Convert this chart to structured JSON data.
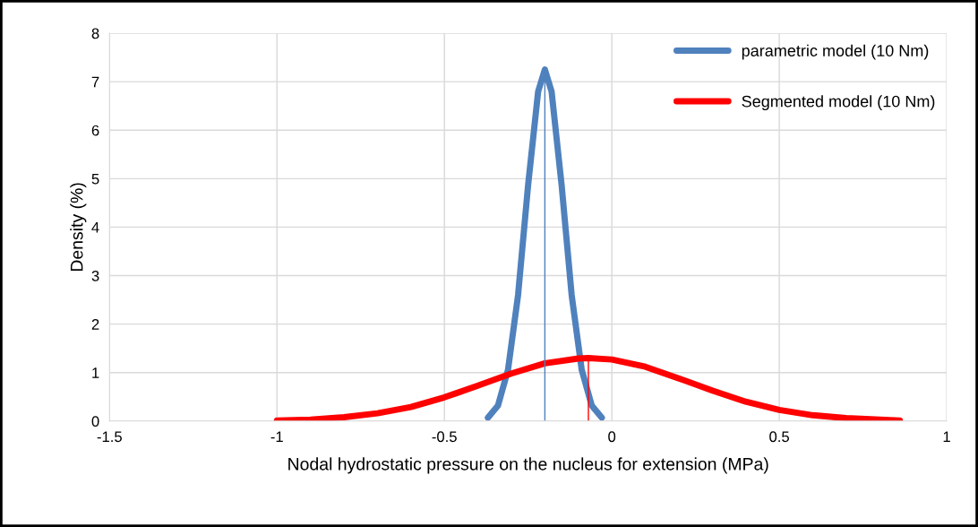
{
  "chart_data": {
    "type": "line",
    "xlabel": "Nodal hydrostatic pressure on the nucleus for extension (MPa)",
    "ylabel": "Density (%)",
    "xlim": [
      -1.5,
      1
    ],
    "xticks": [
      -1.5,
      -1,
      -0.5,
      0,
      0.5,
      1
    ],
    "ylim": [
      0,
      8
    ],
    "yticks": [
      0,
      1,
      2,
      3,
      4,
      5,
      6,
      7,
      8
    ],
    "grid": true,
    "legend": "top right",
    "series": [
      {
        "name": "parametric model (10 Nm)",
        "color": "#4f81bd",
        "x": [
          -0.37,
          -0.34,
          -0.31,
          -0.28,
          -0.25,
          -0.22,
          -0.2,
          -0.18,
          -0.15,
          -0.12,
          -0.09,
          -0.06,
          -0.03
        ],
        "values": [
          0.07,
          0.32,
          1.06,
          2.6,
          4.87,
          6.8,
          7.25,
          6.8,
          4.87,
          2.6,
          1.06,
          0.32,
          0.07
        ]
      },
      {
        "name": "Segmented model (10 Nm)",
        "color": "#ff0000",
        "x": [
          -1,
          -0.9,
          -0.8,
          -0.7,
          -0.6,
          -0.5,
          -0.4,
          -0.3,
          -0.2,
          -0.1,
          -0.07,
          0,
          0.1,
          0.2,
          0.3,
          0.4,
          0.5,
          0.6,
          0.7,
          0.86
        ],
        "values": [
          0.01,
          0.03,
          0.08,
          0.16,
          0.29,
          0.49,
          0.73,
          0.98,
          1.19,
          1.29,
          1.3,
          1.27,
          1.12,
          0.88,
          0.63,
          0.4,
          0.23,
          0.12,
          0.06,
          0.01
        ]
      },
      {
        "color": "#4f81bd",
        "x": [
          -0.2,
          -0.2
        ],
        "values": [
          0,
          7.25
        ]
      },
      {
        "color": "#ff0000",
        "x": [
          -0.07,
          -0.07
        ],
        "values": [
          0,
          1.3
        ]
      }
    ]
  }
}
